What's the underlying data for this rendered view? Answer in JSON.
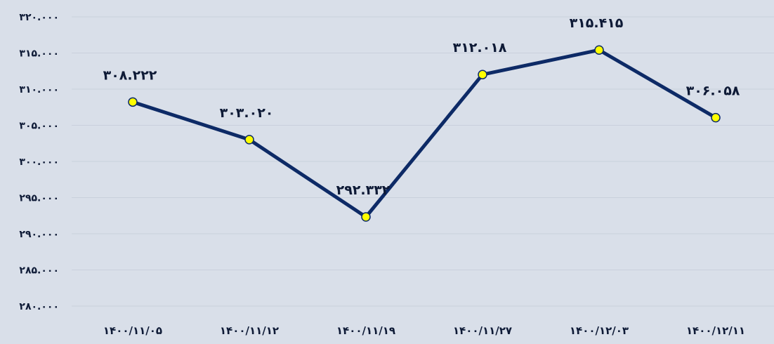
{
  "chart_data": {
    "type": "line",
    "categories": [
      "۱۴۰۰/۱۱/۰۵",
      "۱۴۰۰/۱۱/۱۲",
      "۱۴۰۰/۱۱/۱۹",
      "۱۴۰۰/۱۱/۲۷",
      "۱۴۰۰/۱۲/۰۳",
      "۱۴۰۰/۱۲/۱۱"
    ],
    "values": [
      308222,
      303020,
      292332,
      312018,
      315415,
      306058
    ],
    "data_labels": [
      "۳۰۸.۲۲۲",
      "۳۰۳.۰۲۰",
      "۲۹۲.۳۳۲",
      "۳۱۲.۰۱۸",
      "۳۱۵.۴۱۵",
      "۳۰۶.۰۵۸"
    ],
    "y_ticks": [
      280000,
      285000,
      290000,
      295000,
      300000,
      305000,
      310000,
      315000,
      320000
    ],
    "y_tick_labels": [
      "۲۸۰.۰۰۰",
      "۲۸۵.۰۰۰",
      "۲۹۰.۰۰۰",
      "۲۹۵.۰۰۰",
      "۳۰۰.۰۰۰",
      "۳۰۵.۰۰۰",
      "۳۱۰.۰۰۰",
      "۳۱۵.۰۰۰",
      "۳۲۰.۰۰۰"
    ],
    "ylim": [
      280000,
      320000
    ],
    "title": "",
    "xlabel": "",
    "ylabel": "",
    "grid": true,
    "legend": "none",
    "colors": {
      "line": "#0d2a66",
      "marker_fill": "#ffff00",
      "marker_stroke": "#0d2a66",
      "text": "#0e1a36",
      "background": "#d9dfe9",
      "gridline": "#c9d0dc"
    }
  }
}
